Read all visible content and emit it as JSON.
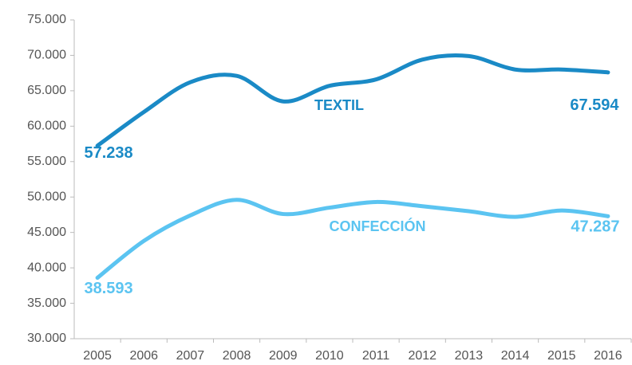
{
  "chart_data": {
    "type": "line",
    "categories": [
      "2005",
      "2006",
      "2007",
      "2008",
      "2009",
      "2010",
      "2011",
      "2012",
      "2013",
      "2014",
      "2015",
      "2016"
    ],
    "series": [
      {
        "name": "TEXTIL",
        "color": "#1a8ac6",
        "values": [
          57238,
          62000,
          66200,
          67100,
          63500,
          65700,
          66600,
          69400,
          69900,
          68000,
          68000,
          67594
        ],
        "value_labels": [
          "57.238",
          null,
          null,
          null,
          null,
          null,
          null,
          null,
          null,
          null,
          null,
          "67.594"
        ]
      },
      {
        "name": "CONFECCIÓN",
        "color": "#5bc4f1",
        "values": [
          38593,
          43800,
          47400,
          49600,
          47600,
          48500,
          49300,
          48700,
          48000,
          47200,
          48100,
          47287
        ],
        "value_labels": [
          "38.593",
          null,
          null,
          null,
          null,
          null,
          null,
          null,
          null,
          null,
          null,
          "47.287"
        ]
      }
    ],
    "ylim": [
      30000,
      75000
    ],
    "yticks": [
      {
        "value": 30000,
        "label": "30.000"
      },
      {
        "value": 35000,
        "label": "35.000"
      },
      {
        "value": 40000,
        "label": "40.000"
      },
      {
        "value": 45000,
        "label": "45.000"
      },
      {
        "value": 50000,
        "label": "50.000"
      },
      {
        "value": 55000,
        "label": "55.000"
      },
      {
        "value": 60000,
        "label": "60.000"
      },
      {
        "value": 65000,
        "label": "65.000"
      },
      {
        "value": 70000,
        "label": "70.000"
      },
      {
        "value": 75000,
        "label": "75.000"
      }
    ],
    "grid": false
  }
}
